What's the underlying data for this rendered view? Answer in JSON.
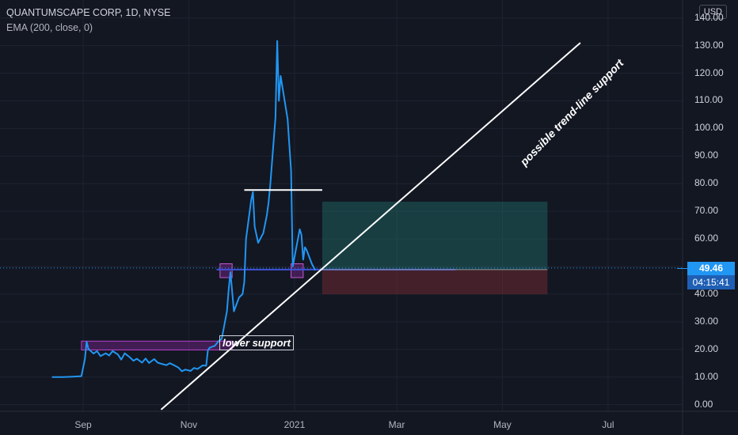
{
  "header": {
    "title": "QUANTUMSCAPE CORP, 1D, NYSE",
    "indicator": "EMA (200, close, 0)"
  },
  "currency": "USD",
  "price_badge": "49.46",
  "countdown": "04:15:41",
  "annotations": {
    "lower_support": "lower support",
    "trend_line": "possible trend-line support"
  },
  "colors": {
    "background": "#131722",
    "price_line": "#2196f3",
    "zone_box": "#9c27b0",
    "profit_zone": "#1f6b68",
    "loss_zone": "#6b2a31"
  },
  "chart_data": {
    "type": "line",
    "series": [
      {
        "values": [
          [
            "2020-08-14",
            10.0
          ],
          [
            "2020-08-20",
            10.0
          ],
          [
            "2020-08-26",
            10.1
          ],
          [
            "2020-08-28",
            10.2
          ],
          [
            "2020-08-31",
            10.3
          ],
          [
            "2020-09-02",
            16.5
          ],
          [
            "2020-09-03",
            22.8
          ],
          [
            "2020-09-04",
            20.2
          ],
          [
            "2020-09-07",
            18.5
          ],
          [
            "2020-09-09",
            19.4
          ],
          [
            "2020-09-11",
            17.6
          ],
          [
            "2020-09-14",
            18.6
          ],
          [
            "2020-09-16",
            17.8
          ],
          [
            "2020-09-18",
            19.4
          ],
          [
            "2020-09-21",
            18.2
          ],
          [
            "2020-09-23",
            16.3
          ],
          [
            "2020-09-25",
            18.6
          ],
          [
            "2020-09-28",
            17.1
          ],
          [
            "2020-09-30",
            15.9
          ],
          [
            "2020-10-02",
            16.6
          ],
          [
            "2020-10-05",
            15.2
          ],
          [
            "2020-10-07",
            16.7
          ],
          [
            "2020-10-09",
            15.1
          ],
          [
            "2020-10-12",
            16.5
          ],
          [
            "2020-10-14",
            15.2
          ],
          [
            "2020-10-16",
            14.8
          ],
          [
            "2020-10-19",
            14.3
          ],
          [
            "2020-10-21",
            15.0
          ],
          [
            "2020-10-23",
            14.4
          ],
          [
            "2020-10-26",
            13.4
          ],
          [
            "2020-10-28",
            12.1
          ],
          [
            "2020-10-30",
            12.7
          ],
          [
            "2020-11-02",
            12.2
          ],
          [
            "2020-11-04",
            13.3
          ],
          [
            "2020-11-06",
            12.9
          ],
          [
            "2020-11-09",
            14.2
          ],
          [
            "2020-11-11",
            14.1
          ],
          [
            "2020-11-12",
            19.6
          ],
          [
            "2020-11-13",
            20.6
          ],
          [
            "2020-11-16",
            21.3
          ],
          [
            "2020-11-18",
            22.9
          ],
          [
            "2020-11-20",
            23.8
          ],
          [
            "2020-11-23",
            33.8
          ],
          [
            "2020-11-24",
            41.7
          ],
          [
            "2020-11-25",
            48.0
          ],
          [
            "2020-11-27",
            33.8
          ],
          [
            "2020-11-30",
            38.8
          ],
          [
            "2020-12-02",
            40.0
          ],
          [
            "2020-12-03",
            44.4
          ],
          [
            "2020-12-04",
            60.0
          ],
          [
            "2020-12-07",
            74.0
          ],
          [
            "2020-12-08",
            77.0
          ],
          [
            "2020-12-09",
            64.5
          ],
          [
            "2020-12-11",
            58.6
          ],
          [
            "2020-12-14",
            62.1
          ],
          [
            "2020-12-16",
            68.4
          ],
          [
            "2020-12-17",
            73.0
          ],
          [
            "2020-12-18",
            79.5
          ],
          [
            "2020-12-21",
            104.0
          ],
          [
            "2020-12-22",
            131.7
          ],
          [
            "2020-12-23",
            110.0
          ],
          [
            "2020-12-24",
            119.0
          ],
          [
            "2020-12-28",
            103.4
          ],
          [
            "2020-12-29",
            94.0
          ],
          [
            "2020-12-30",
            84.7
          ],
          [
            "2020-12-31",
            50.0
          ],
          [
            "2021-01-04",
            63.5
          ],
          [
            "2021-01-05",
            61.5
          ],
          [
            "2021-01-06",
            52.5
          ],
          [
            "2021-01-07",
            57.0
          ],
          [
            "2021-01-08",
            56.0
          ],
          [
            "2021-01-11",
            51.0
          ],
          [
            "2021-01-13",
            48.6
          ]
        ]
      }
    ],
    "y_ticks": [
      "0.00",
      "10.00",
      "20.00",
      "30.00",
      "40.00",
      "50.00",
      "60.00",
      "70.00",
      "80.00",
      "90.00",
      "100.00",
      "110.00",
      "120.00",
      "130.00",
      "140.00"
    ],
    "x_ticks": [
      "Sep",
      "Nov",
      "2021",
      "Mar",
      "May",
      "Jul"
    ],
    "x_range": [
      "2020-07-15",
      "2021-08-13"
    ],
    "ylim": [
      -2.4,
      146.5
    ],
    "last_price": 49.46,
    "shapes": {
      "lower_support_zone": {
        "from": "2020-08-31",
        "to": "2020-11-26",
        "y": [
          19.8,
          23.0
        ]
      },
      "resistance_line": {
        "from": "2020-12-03",
        "to": "2021-01-17",
        "y": 77.7
      },
      "breakout_box_1": {
        "from": "2020-11-19",
        "to": "2020-11-26",
        "y": [
          46.0,
          51.0
        ]
      },
      "breakout_box_2": {
        "from": "2020-12-30",
        "to": "2021-01-06",
        "y": [
          46.0,
          51.0
        ]
      },
      "entry_line": {
        "from": "2020-11-17",
        "to": "2021-04-04",
        "y": 48.9
      },
      "target_zone": {
        "from": "2021-01-17",
        "to": "2021-05-27",
        "y": [
          48.9,
          73.5
        ]
      },
      "stop_zone": {
        "from": "2021-01-17",
        "to": "2021-05-27",
        "y": [
          40.0,
          48.9
        ]
      },
      "trend_line": {
        "from": [
          "2020-10-16",
          -1.8
        ],
        "to": [
          "2021-06-15",
          131.0
        ]
      }
    }
  }
}
